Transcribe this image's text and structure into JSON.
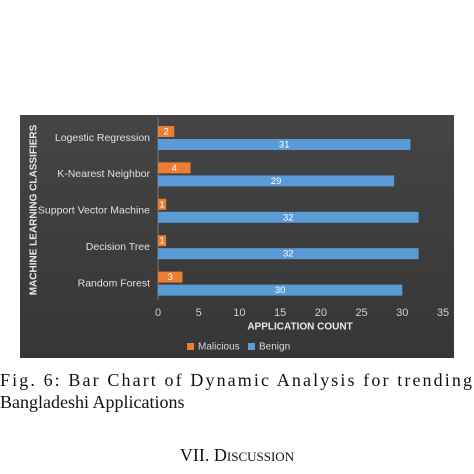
{
  "chart_data": {
    "type": "barh",
    "y_label": "MACHINE LEARNING CLASSIFIERS",
    "x_label": "APPLICATION COUNT",
    "categories": [
      "Logestic Regression",
      "K-Nearest Neighbor",
      "Support Vector Machine",
      "Decision Tree",
      "Random Forest"
    ],
    "series": [
      {
        "name": "Malicious",
        "color": "#ed7d31",
        "values": [
          2,
          4,
          1,
          1,
          3
        ]
      },
      {
        "name": "Benign",
        "color": "#5b9bd5",
        "values": [
          31,
          29,
          32,
          32,
          30
        ]
      }
    ],
    "xlim": [
      0,
      35
    ],
    "xticks": [
      0,
      5,
      10,
      15,
      20,
      25,
      30,
      35
    ],
    "legend": "bottom",
    "grid": false
  },
  "caption_lines": [
    "Fig. 6: Bar Chart of Dynamic Analysis for trending",
    "Bangladeshi Applications"
  ],
  "section_heading": "VII. Discussion"
}
